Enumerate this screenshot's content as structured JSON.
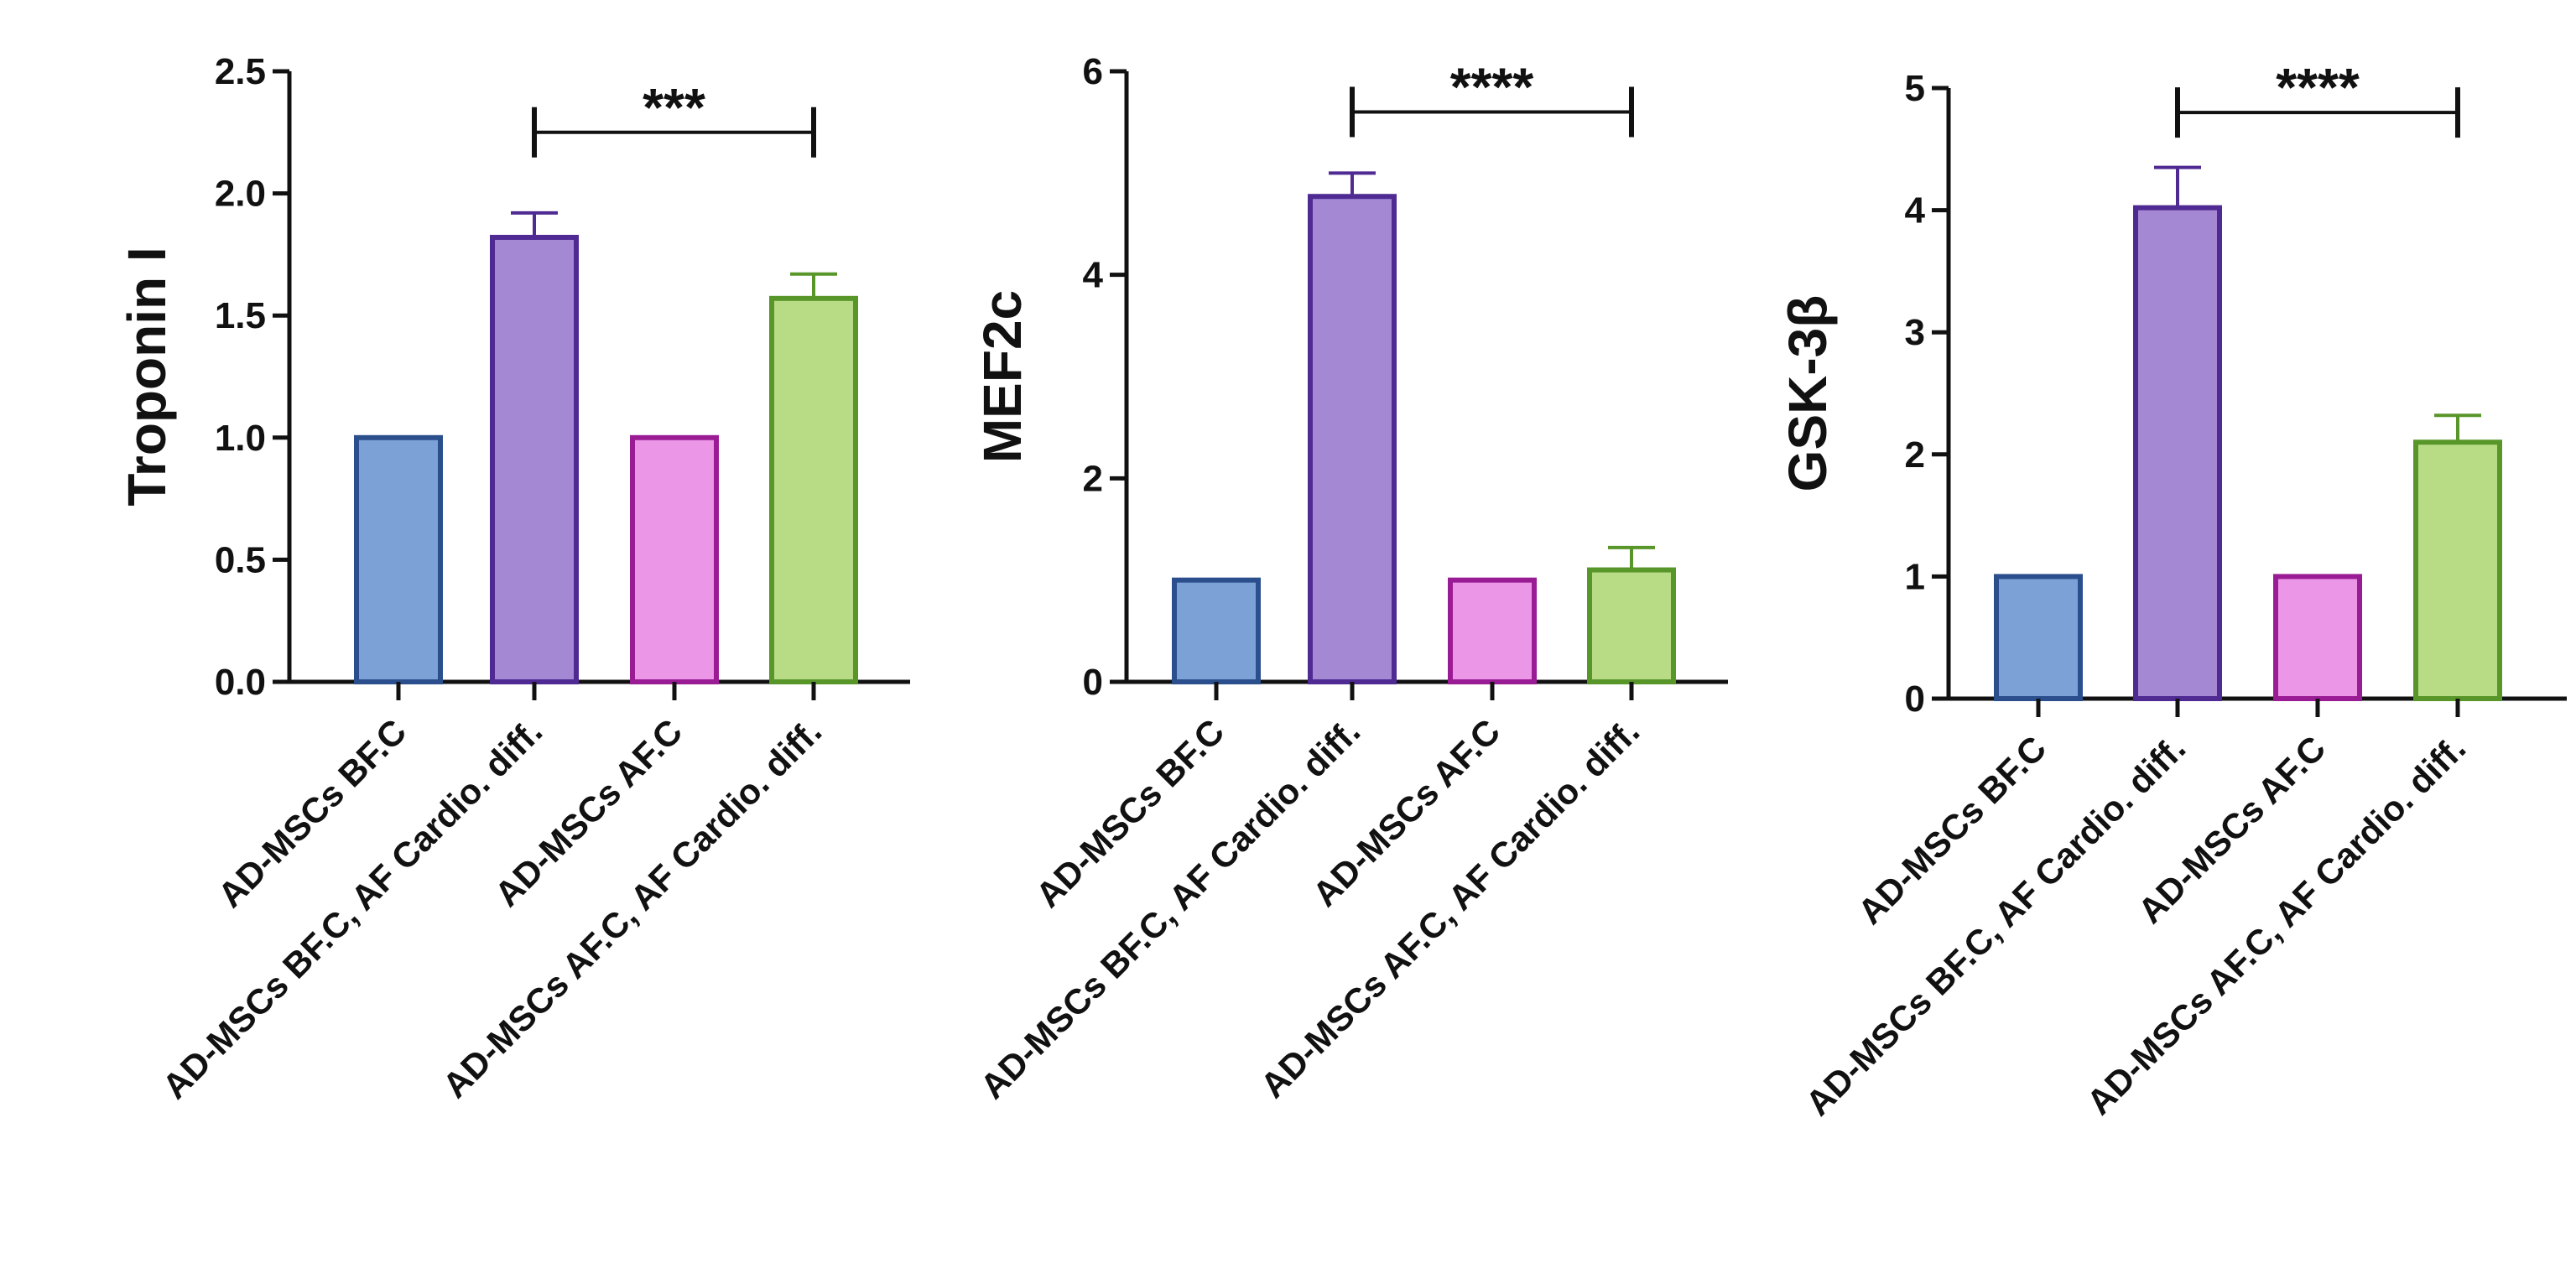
{
  "chart_data": [
    {
      "type": "bar",
      "title": "",
      "xlabel": "",
      "ylabel": "Troponin I",
      "ylim": [
        0,
        2.5
      ],
      "yticks": [
        "0.0",
        "0.5",
        "1.0",
        "1.5",
        "2.0",
        "2.5"
      ],
      "ytick_values": [
        0,
        0.5,
        1.0,
        1.5,
        2.0,
        2.5
      ],
      "categories": [
        "AD-MSCs BF.C",
        "AD-MSCs BF.C, AF Cardio. diff.",
        "AD-MSCs AF.C",
        "AD-MSCs AF.C, AF Cardio. diff."
      ],
      "values": [
        1.0,
        1.82,
        1.0,
        1.57
      ],
      "errors": [
        0,
        0.1,
        0,
        0.1
      ],
      "significance": {
        "label": "***",
        "from": 1,
        "to": 3,
        "y": 2.25
      }
    },
    {
      "type": "bar",
      "title": "",
      "xlabel": "",
      "ylabel": "MEF2c",
      "ylim": [
        0,
        6
      ],
      "yticks": [
        "0",
        "2",
        "4",
        "6"
      ],
      "ytick_values": [
        0,
        2,
        4,
        6
      ],
      "categories": [
        "AD-MSCs BF.C",
        "AD-MSCs BF.C, AF Cardio. diff.",
        "AD-MSCs AF.C",
        "AD-MSCs AF.C, AF Cardio. diff."
      ],
      "values": [
        1.0,
        4.77,
        1.0,
        1.1
      ],
      "errors": [
        0,
        0.23,
        0,
        0.22
      ],
      "significance": {
        "label": "****",
        "from": 1,
        "to": 3,
        "y": 5.6
      }
    },
    {
      "type": "bar",
      "title": "",
      "xlabel": "",
      "ylabel": "GSK-3β",
      "ylim": [
        0,
        5
      ],
      "yticks": [
        "0",
        "1",
        "2",
        "3",
        "4",
        "5"
      ],
      "ytick_values": [
        0,
        1,
        2,
        3,
        4,
        5
      ],
      "categories": [
        "AD-MSCs BF.C",
        "AD-MSCs BF.C, AF Cardio. diff.",
        "AD-MSCs AF.C",
        "AD-MSCs AF.C, AF Cardio. diff."
      ],
      "values": [
        1.0,
        4.02,
        1.0,
        2.1
      ],
      "errors": [
        0,
        0.33,
        0,
        0.22
      ],
      "significance": {
        "label": "****",
        "from": 1,
        "to": 3,
        "y": 4.8
      }
    }
  ],
  "colors": {
    "fills": [
      "#7ba1d6",
      "#a488d4",
      "#ec96e8",
      "#b8dc86"
    ],
    "strokes": [
      "#2a4f8c",
      "#4f2a92",
      "#9a1c95",
      "#58962a"
    ],
    "axis": "#111111"
  }
}
